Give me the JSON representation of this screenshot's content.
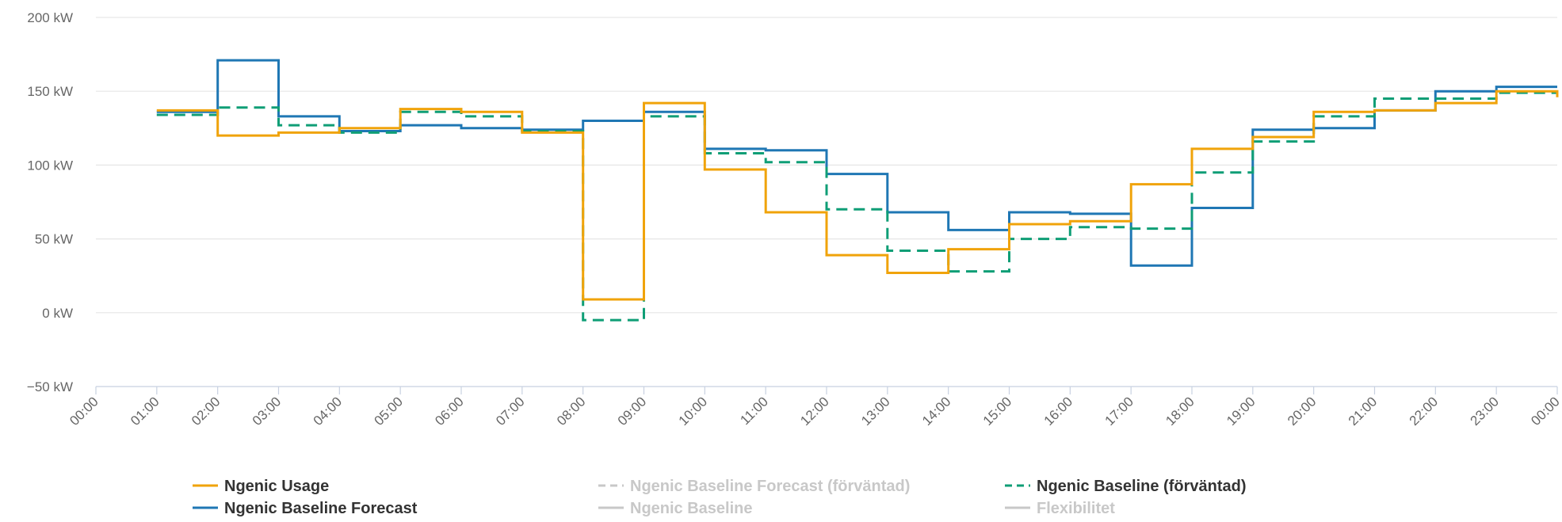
{
  "chart_data": {
    "type": "line",
    "step": true,
    "y_unit": "kW",
    "ylim": [
      -50,
      200
    ],
    "y_ticks": [
      {
        "value": -50,
        "label": "−50 kW"
      },
      {
        "value": 0,
        "label": "0 kW"
      },
      {
        "value": 50,
        "label": "50 kW"
      },
      {
        "value": 100,
        "label": "100 kW"
      },
      {
        "value": 150,
        "label": "150 kW"
      },
      {
        "value": 200,
        "label": "200 kW"
      }
    ],
    "x_ticks": [
      "00:00",
      "01:00",
      "02:00",
      "03:00",
      "04:00",
      "05:00",
      "06:00",
      "07:00",
      "08:00",
      "09:00",
      "10:00",
      "11:00",
      "12:00",
      "13:00",
      "14:00",
      "15:00",
      "16:00",
      "17:00",
      "18:00",
      "19:00",
      "20:00",
      "21:00",
      "22:00",
      "23:00",
      "00:00"
    ],
    "x_hours": [
      1,
      2,
      3,
      4,
      5,
      6,
      7,
      8,
      9,
      10,
      11,
      12,
      13,
      14,
      15,
      16,
      17,
      18,
      19,
      20,
      21,
      22,
      23,
      24
    ],
    "grid": true,
    "legend_position": "bottom",
    "series": [
      {
        "name": "Ngenic Usage",
        "color": "#f0a30a",
        "dash": "solid",
        "visible": true,
        "values": [
          137,
          120,
          122,
          125,
          138,
          136,
          122,
          9,
          142,
          97,
          68,
          39,
          27,
          43,
          60,
          62,
          87,
          111,
          119,
          136,
          137,
          142,
          150,
          146
        ]
      },
      {
        "name": "Ngenic Baseline Forecast",
        "color": "#1f77b4",
        "dash": "solid",
        "visible": true,
        "values": [
          136,
          171,
          133,
          123,
          127,
          125,
          124,
          130,
          136,
          111,
          110,
          94,
          68,
          56,
          68,
          67,
          32,
          71,
          124,
          125,
          137,
          150,
          153,
          153
        ]
      },
      {
        "name": "Ngenic Baseline Forecast (förväntad)",
        "color": "#c8c8c8",
        "dash": "dashed",
        "visible": false,
        "values": []
      },
      {
        "name": "Ngenic Baseline",
        "color": "#c8c8c8",
        "dash": "solid",
        "visible": false,
        "values": []
      },
      {
        "name": "Ngenic Baseline (förväntad)",
        "color": "#0f9e76",
        "dash": "dashed",
        "visible": true,
        "values": [
          134,
          139,
          127,
          122,
          136,
          133,
          123,
          -5,
          133,
          108,
          102,
          70,
          42,
          28,
          50,
          58,
          57,
          95,
          116,
          133,
          145,
          145,
          149,
          149
        ]
      },
      {
        "name": "Flexibilitet",
        "color": "#c8c8c8",
        "dash": "solid",
        "visible": false,
        "values": []
      }
    ]
  }
}
